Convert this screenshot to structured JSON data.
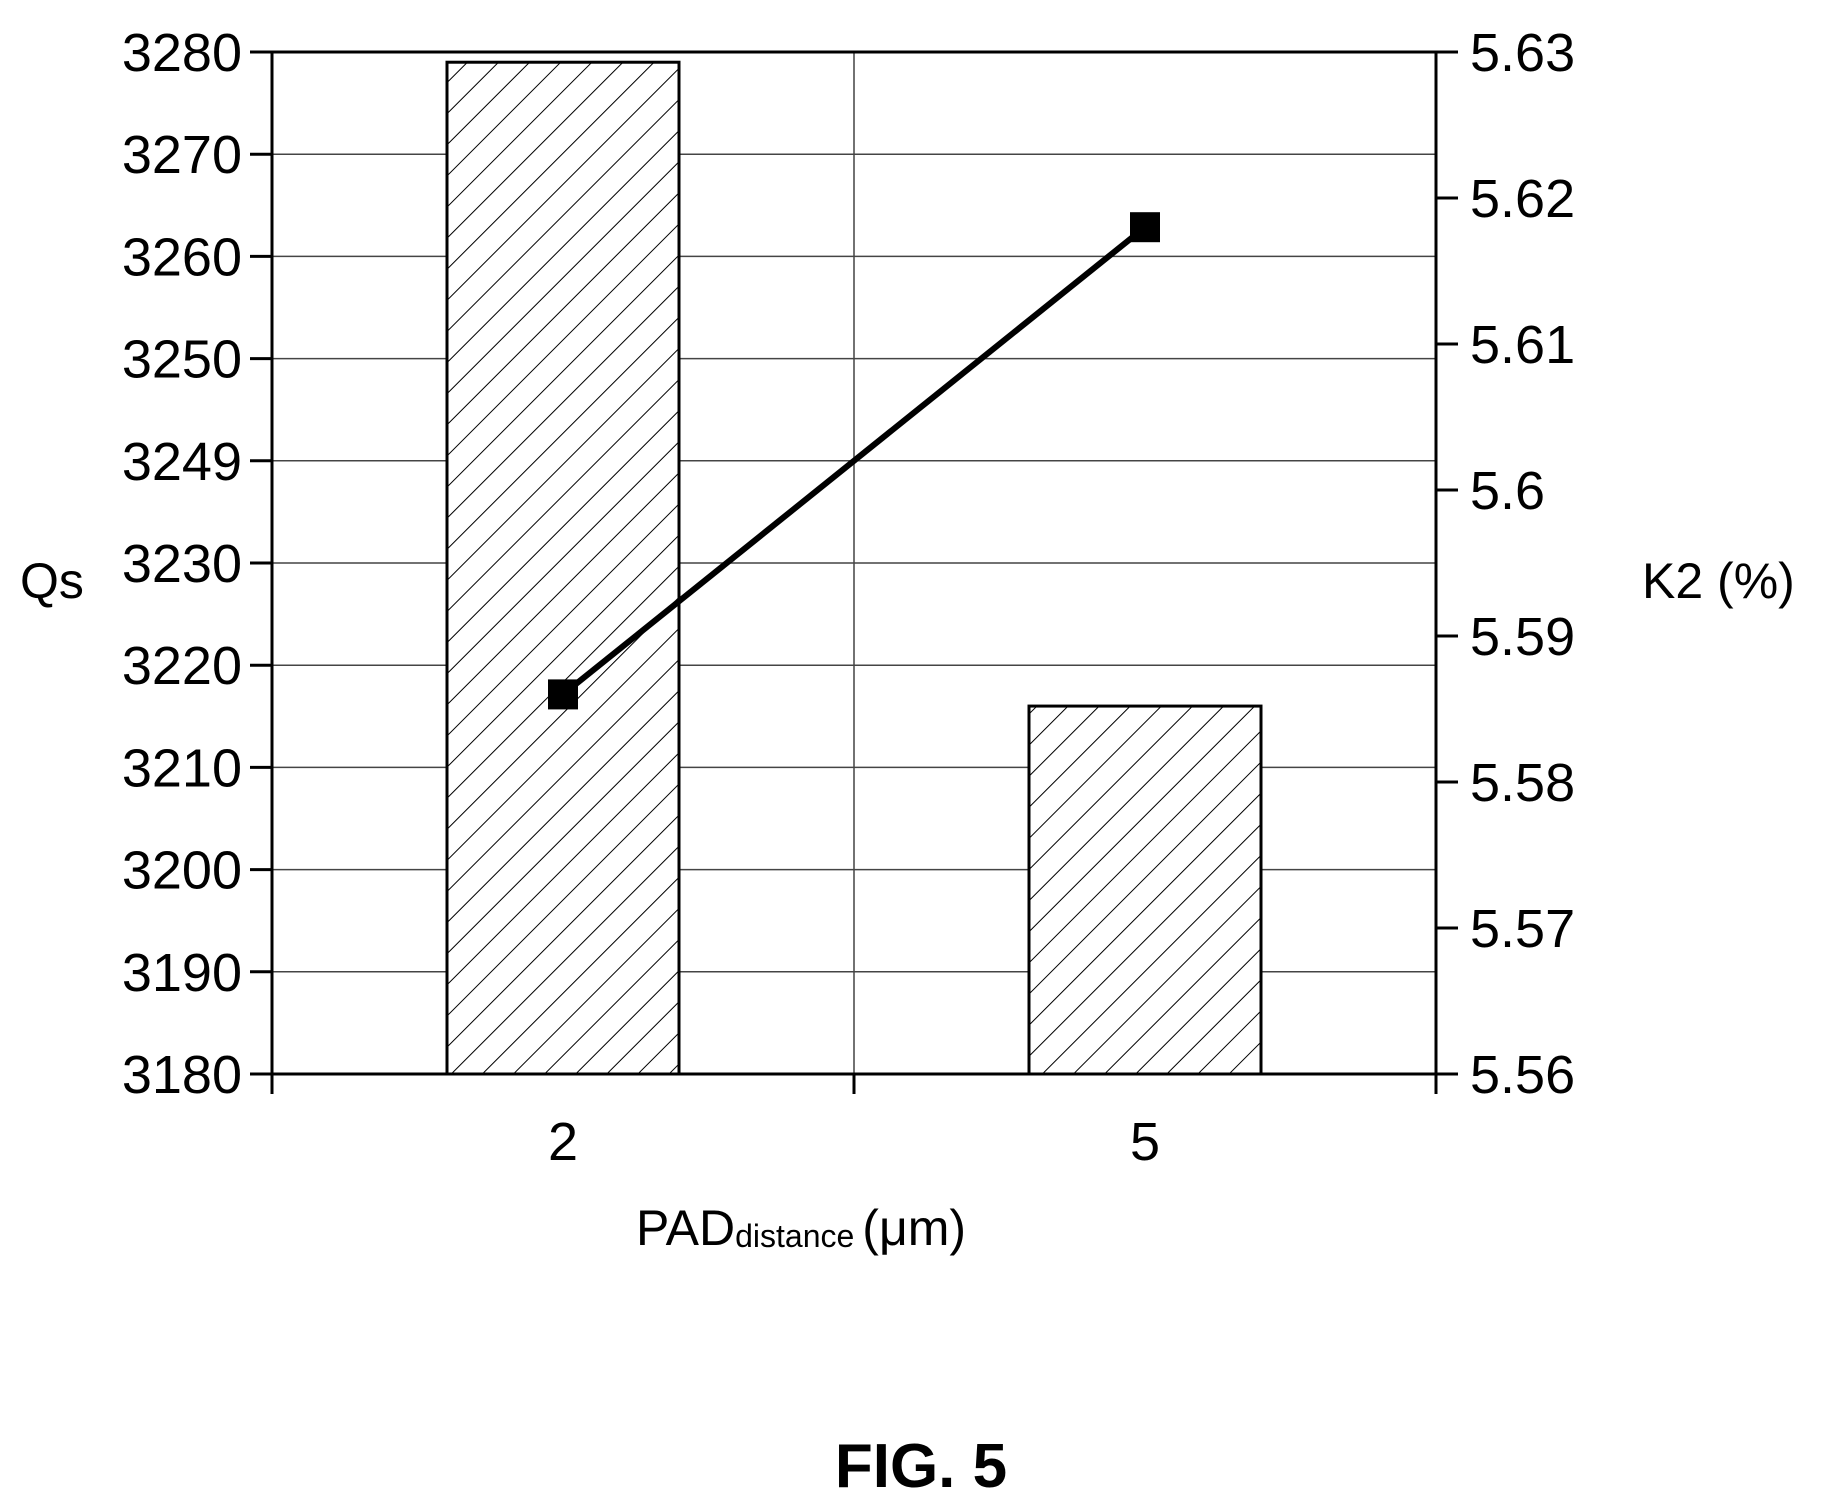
{
  "figure_caption": "FIG. 5",
  "chart_data": {
    "type": "bar",
    "categories": [
      "2",
      "5"
    ],
    "xlabel_main": "PAD",
    "xlabel_sub": "distance",
    "xlabel_unit": "(μm)",
    "y_left": {
      "label": "Qs",
      "ticks": [
        "3280",
        "3270",
        "3260",
        "3250",
        "3249",
        "3230",
        "3220",
        "3210",
        "3200",
        "3190",
        "3180"
      ],
      "bar_values_tick_position": [
        9.9,
        3.6
      ],
      "bar_values_approx": [
        3268,
        3215
      ]
    },
    "y_right": {
      "label": "K2 (%)",
      "ticks": [
        "5.63",
        "5.62",
        "5.61",
        "5.6",
        "5.59",
        "5.58",
        "5.57",
        "5.56"
      ],
      "ylim": [
        5.56,
        5.63
      ]
    },
    "series": [
      {
        "kind": "bar",
        "axis": "left"
      },
      {
        "kind": "line",
        "axis": "right",
        "marker": "square",
        "values": [
          5.586,
          5.618
        ]
      }
    ],
    "grid": true
  }
}
